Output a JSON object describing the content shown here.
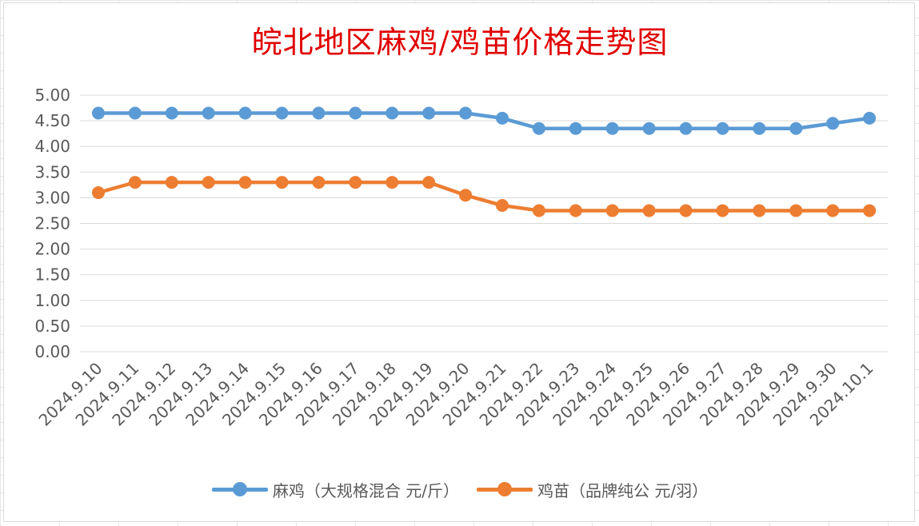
{
  "chart_data": {
    "type": "line",
    "title": "皖北地区麻鸡/鸡苗价格走势图",
    "categories": [
      "2024.9.10",
      "2024.9.11",
      "2024.9.12",
      "2024.9.13",
      "2024.9.14",
      "2024.9.15",
      "2024.9.16",
      "2024.9.17",
      "2024.9.18",
      "2024.9.19",
      "2024.9.20",
      "2024.9.21",
      "2024.9.22",
      "2024.9.23",
      "2024.9.24",
      "2024.9.25",
      "2024.9.26",
      "2024.9.27",
      "2024.9.28",
      "2024.9.29",
      "2024.9.30",
      "2024.10.1"
    ],
    "y_ticks": [
      "0.00",
      "0.50",
      "1.00",
      "1.50",
      "2.00",
      "2.50",
      "3.00",
      "3.50",
      "4.00",
      "4.50",
      "5.00"
    ],
    "ylim": [
      0,
      5
    ],
    "grid": true,
    "legend_position": "bottom",
    "series": [
      {
        "name": "麻鸡（大规格混合 元/斤）",
        "color": "#5B9BD5",
        "values": [
          4.65,
          4.65,
          4.65,
          4.65,
          4.65,
          4.65,
          4.65,
          4.65,
          4.65,
          4.65,
          4.65,
          4.55,
          4.35,
          4.35,
          4.35,
          4.35,
          4.35,
          4.35,
          4.35,
          4.35,
          4.45,
          4.55
        ]
      },
      {
        "name": "鸡苗（品牌纯公 元/羽）",
        "color": "#ED7D31",
        "values": [
          3.1,
          3.3,
          3.3,
          3.3,
          3.3,
          3.3,
          3.3,
          3.3,
          3.3,
          3.3,
          3.05,
          2.85,
          2.75,
          2.75,
          2.75,
          2.75,
          2.75,
          2.75,
          2.75,
          2.75,
          2.75,
          2.75
        ]
      }
    ]
  }
}
